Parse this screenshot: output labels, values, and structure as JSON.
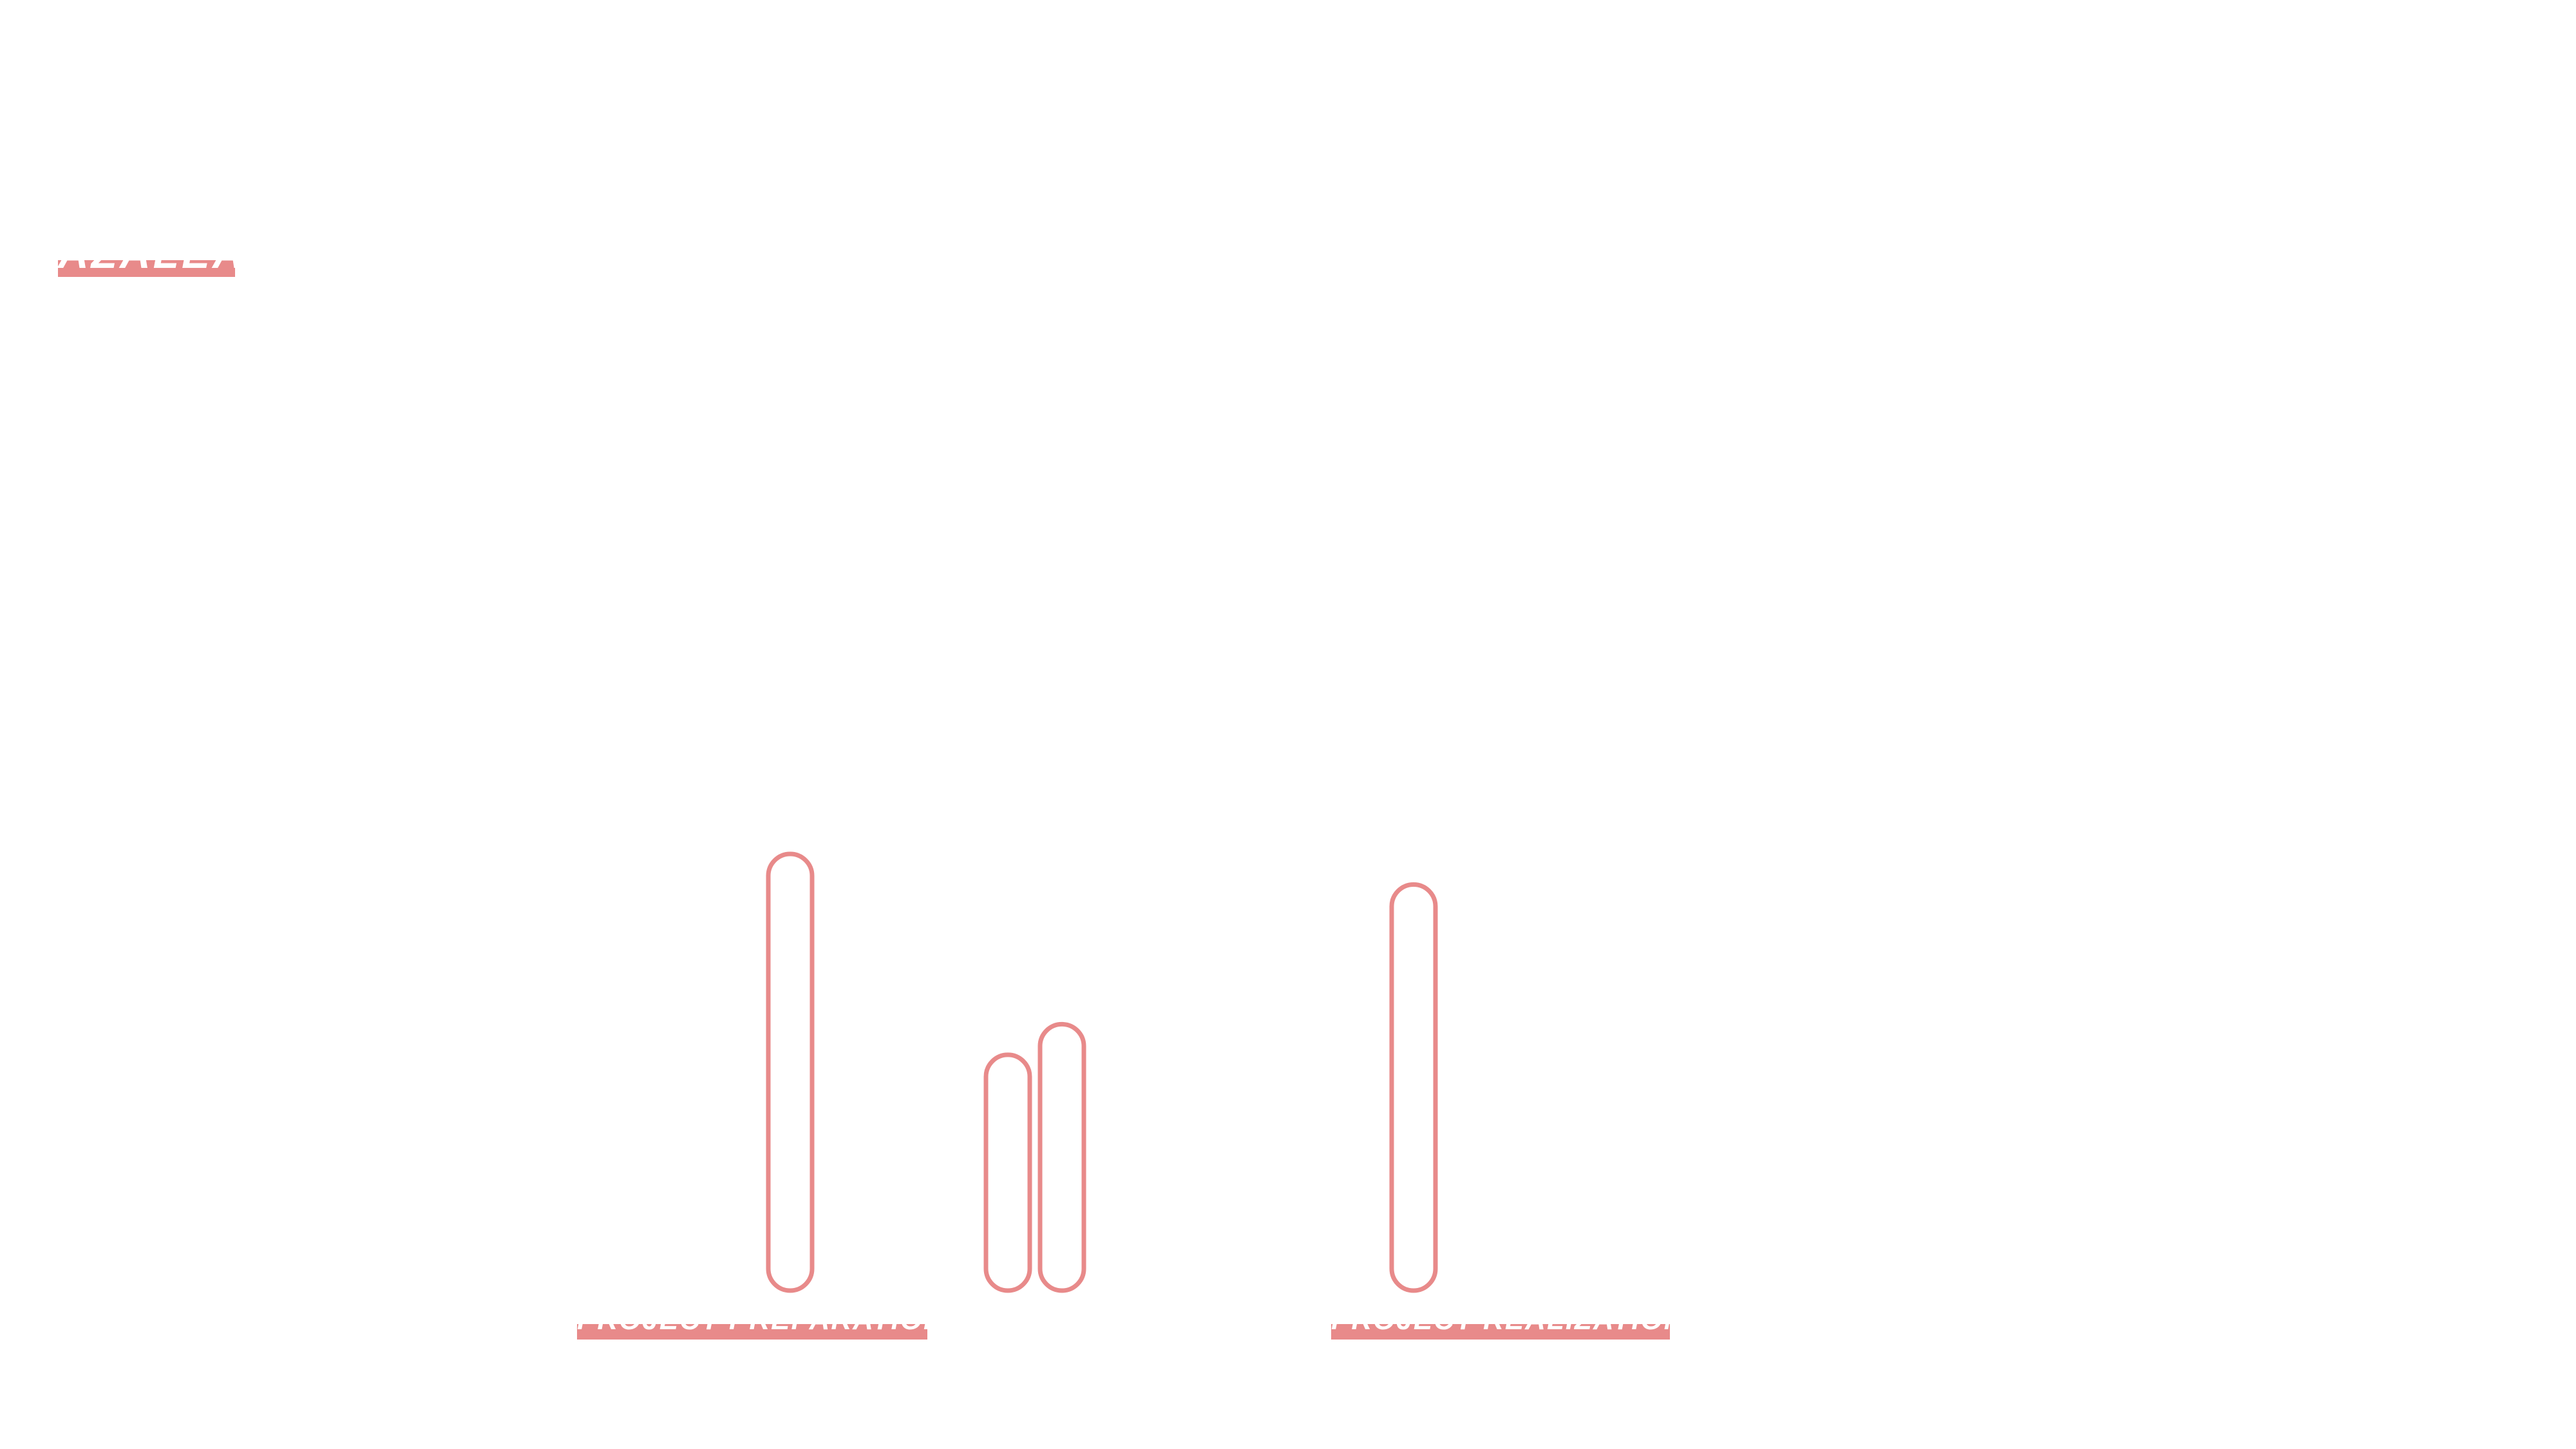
{
  "brand": {
    "label": "AZALEA"
  },
  "colors": {
    "accent": "#E88A8A",
    "label_text": "#FFFFFF",
    "background": "#FFFFFF"
  },
  "chart_data": {
    "type": "bar",
    "title": "",
    "xlabel": "",
    "ylabel": "",
    "categories": [
      "PROJECT PREPARATION",
      "PROJECT REALIZATION"
    ],
    "series": [
      {
        "values": [
          100,
          93
        ]
      },
      {
        "values": [
          54,
          null
        ]
      },
      {
        "values": [
          61,
          null
        ]
      }
    ],
    "ylim": [
      0,
      100
    ],
    "grid": false,
    "legend": "none"
  }
}
